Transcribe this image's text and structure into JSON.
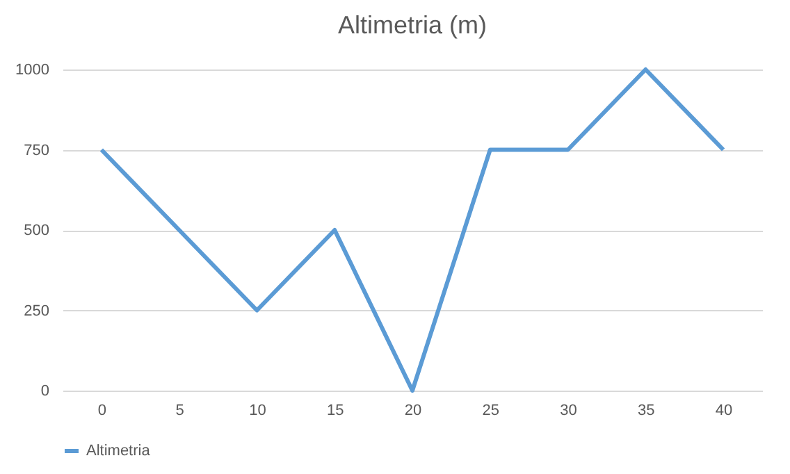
{
  "chart_data": {
    "type": "line",
    "title": "Altimetria (m)",
    "categories": [
      "0",
      "5",
      "10",
      "15",
      "20",
      "25",
      "30",
      "35",
      "40"
    ],
    "series": [
      {
        "name": "Altimetria",
        "color": "#5b9bd5",
        "values": [
          750,
          500,
          250,
          500,
          0,
          750,
          750,
          1000,
          750
        ]
      }
    ],
    "ylim": [
      0,
      1000
    ],
    "yticks": [
      0,
      250,
      500,
      750,
      1000
    ],
    "grid": "y",
    "legend": "bottom",
    "marker": "none",
    "line_style": "solid"
  }
}
